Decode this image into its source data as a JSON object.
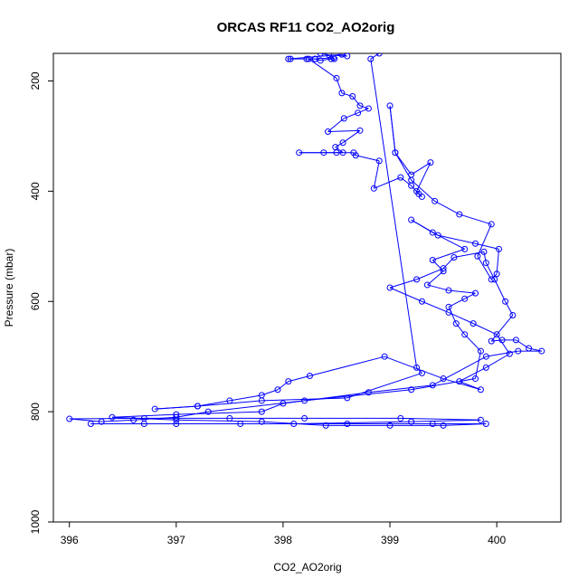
{
  "chart_data": {
    "type": "line",
    "title": "ORCAS RF11 CO2_AO2orig",
    "xlabel": "CO2_AO2orig",
    "ylabel": "Pressure (mbar)",
    "xlim": [
      395.85,
      400.6
    ],
    "ylim": [
      1000,
      150
    ],
    "y_reversed": true,
    "x_ticks": [
      "396",
      "397",
      "398",
      "399",
      "400"
    ],
    "y_ticks": [
      "200",
      "400",
      "600",
      "800",
      "1000"
    ],
    "grid": false,
    "line_color": "#0000ff",
    "marker": "open-circle",
    "series": [
      {
        "values": [
          [
            398.35,
            150
          ],
          [
            398.43,
            153
          ],
          [
            398.6,
            155
          ],
          [
            398.55,
            152
          ],
          [
            398.05,
            160
          ],
          [
            398.07,
            160
          ],
          [
            398.22,
            160
          ],
          [
            398.3,
            160
          ],
          [
            398.35,
            163
          ],
          [
            398.45,
            160
          ],
          [
            398.48,
            160
          ],
          [
            398.47,
            158
          ],
          [
            398.3,
            160
          ],
          [
            398.24,
            160
          ],
          [
            398.5,
            195
          ],
          [
            398.55,
            222
          ],
          [
            398.65,
            228
          ],
          [
            398.72,
            245
          ],
          [
            398.8,
            250
          ],
          [
            398.7,
            258
          ],
          [
            398.57,
            268
          ],
          [
            398.42,
            292
          ],
          [
            398.72,
            290
          ],
          [
            398.56,
            312
          ],
          [
            398.49,
            320
          ],
          [
            398.56,
            330
          ],
          [
            398.5,
            330
          ],
          [
            398.38,
            330
          ],
          [
            398.15,
            330
          ],
          [
            398.66,
            330
          ],
          [
            398.68,
            335
          ],
          [
            398.9,
            345
          ],
          [
            398.85,
            395
          ],
          [
            399.1,
            375
          ],
          [
            399.2,
            390
          ],
          [
            399.27,
            405
          ],
          [
            399.3,
            410
          ],
          [
            399.25,
            400
          ],
          [
            399.38,
            348
          ],
          [
            399.2,
            370
          ],
          [
            399.05,
            330
          ],
          [
            399.0,
            245
          ],
          [
            399.05,
            330
          ],
          [
            399.2,
            380
          ],
          [
            399.42,
            418
          ],
          [
            399.65,
            442
          ],
          [
            399.95,
            460
          ],
          [
            399.82,
            518
          ],
          [
            399.95,
            560
          ],
          [
            400.0,
            550
          ],
          [
            400.02,
            505
          ],
          [
            399.8,
            495
          ],
          [
            399.45,
            480
          ],
          [
            399.2,
            452
          ],
          [
            399.4,
            475
          ],
          [
            399.7,
            505
          ],
          [
            399.4,
            525
          ],
          [
            399.5,
            545
          ],
          [
            399.35,
            570
          ],
          [
            399.55,
            580
          ],
          [
            399.8,
            585
          ],
          [
            399.7,
            595
          ],
          [
            399.55,
            610
          ],
          [
            399.62,
            640
          ],
          [
            399.7,
            660
          ],
          [
            399.85,
            690
          ],
          [
            399.8,
            740
          ],
          [
            399.2,
            760
          ],
          [
            398.2,
            780
          ],
          [
            397.3,
            800
          ],
          [
            397.0,
            810
          ],
          [
            396.6,
            815
          ],
          [
            396.3,
            818
          ],
          [
            396.0,
            813
          ],
          [
            396.7,
            812
          ],
          [
            397.5,
            812
          ],
          [
            398.2,
            812
          ],
          [
            399.1,
            812
          ],
          [
            399.85,
            815
          ],
          [
            399.2,
            818
          ],
          [
            398.1,
            822
          ],
          [
            397.0,
            822
          ],
          [
            396.2,
            822
          ],
          [
            396.7,
            822
          ],
          [
            397.6,
            822
          ],
          [
            398.6,
            822
          ],
          [
            399.4,
            822
          ],
          [
            399.9,
            822
          ],
          [
            399.5,
            825
          ],
          [
            399.0,
            825
          ],
          [
            398.4,
            825
          ],
          [
            397.8,
            818
          ],
          [
            397.0,
            815
          ],
          [
            396.4,
            810
          ],
          [
            397.0,
            805
          ],
          [
            397.8,
            800
          ],
          [
            398.0,
            785
          ],
          [
            398.8,
            765
          ],
          [
            399.4,
            752
          ],
          [
            399.9,
            700
          ],
          [
            400.2,
            690
          ],
          [
            400.42,
            690
          ],
          [
            400.3,
            685
          ],
          [
            400.18,
            670
          ],
          [
            400.05,
            670
          ],
          [
            399.95,
            672
          ],
          [
            400.15,
            625
          ],
          [
            400.08,
            600
          ],
          [
            399.98,
            560
          ],
          [
            399.9,
            530
          ],
          [
            399.88,
            510
          ],
          [
            399.6,
            520
          ],
          [
            399.5,
            540
          ],
          [
            399.25,
            560
          ],
          [
            399.0,
            575
          ],
          [
            399.3,
            600
          ],
          [
            399.55,
            620
          ],
          [
            399.78,
            640
          ],
          [
            400.0,
            660
          ],
          [
            400.12,
            695
          ],
          [
            399.9,
            720
          ],
          [
            399.65,
            745
          ],
          [
            399.85,
            760
          ],
          [
            399.5,
            740
          ],
          [
            398.95,
            700
          ],
          [
            398.25,
            735
          ],
          [
            398.05,
            745
          ],
          [
            397.95,
            760
          ],
          [
            397.8,
            770
          ],
          [
            397.5,
            780
          ],
          [
            397.2,
            790
          ],
          [
            396.8,
            795
          ],
          [
            397.2,
            790
          ],
          [
            397.8,
            780
          ],
          [
            398.6,
            775
          ],
          [
            399.3,
            730
          ],
          [
            399.25,
            720
          ],
          [
            398.82,
            160
          ],
          [
            398.9,
            150
          ]
        ]
      }
    ]
  }
}
